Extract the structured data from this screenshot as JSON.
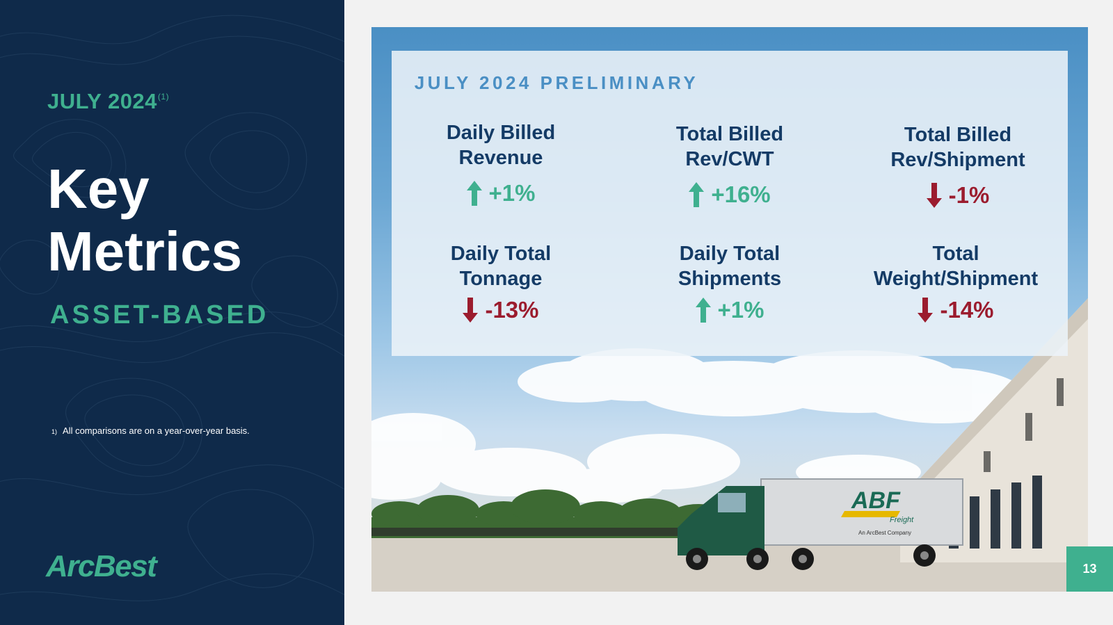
{
  "left_panel": {
    "date": "JULY 2024",
    "date_footnote_marker": "(1)",
    "title_line1": "Key",
    "title_line2": "Metrics",
    "subtitle": "ASSET-BASED",
    "footnote_number": "1)",
    "footnote_text": "All comparisons are on a year-over-year basis.",
    "logo": "ArcBest"
  },
  "card": {
    "heading": "JULY 2024 PRELIMINARY",
    "metrics": [
      {
        "label_line1": "Daily Billed",
        "label_line2": "Revenue",
        "value": "+1%",
        "direction": "up"
      },
      {
        "label_line1": "Total Billed",
        "label_line2": "Rev/CWT",
        "value": "+16%",
        "direction": "up"
      },
      {
        "label_line1": "Total Billed",
        "label_line2": "Rev/Shipment",
        "value": "-1%",
        "direction": "down"
      },
      {
        "label_line1": "Daily Total",
        "label_line2": "Tonnage",
        "value": "-13%",
        "direction": "down"
      },
      {
        "label_line1": "Daily Total",
        "label_line2": "Shipments",
        "value": "+1%",
        "direction": "up"
      },
      {
        "label_line1": "Total",
        "label_line2": "Weight/Shipment",
        "value": "-14%",
        "direction": "down"
      }
    ]
  },
  "truck": {
    "brand": "ABF",
    "brand_sub": "Freight",
    "tagline": "An ArcBest Company"
  },
  "page_number": "13",
  "colors": {
    "navy": "#0f2a4a",
    "teal": "#3fb08f",
    "heading_blue": "#4a8fc4",
    "label_navy": "#143b66",
    "negative_red": "#9b1c2e"
  }
}
